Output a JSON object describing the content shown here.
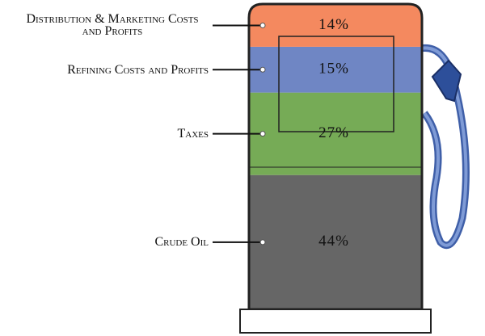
{
  "chart_data": {
    "type": "stacked-pump",
    "categories": [
      "Distribution & Marketing Costs and Profits",
      "Refining Costs and Profits",
      "Taxes",
      "Crude Oil"
    ],
    "values": [
      14,
      15,
      27,
      44
    ],
    "value_labels": [
      "14%",
      "15%",
      "27%",
      "44%"
    ],
    "colors": [
      "#f4895f",
      "#6f86c4",
      "#76ab56",
      "#666666"
    ]
  }
}
